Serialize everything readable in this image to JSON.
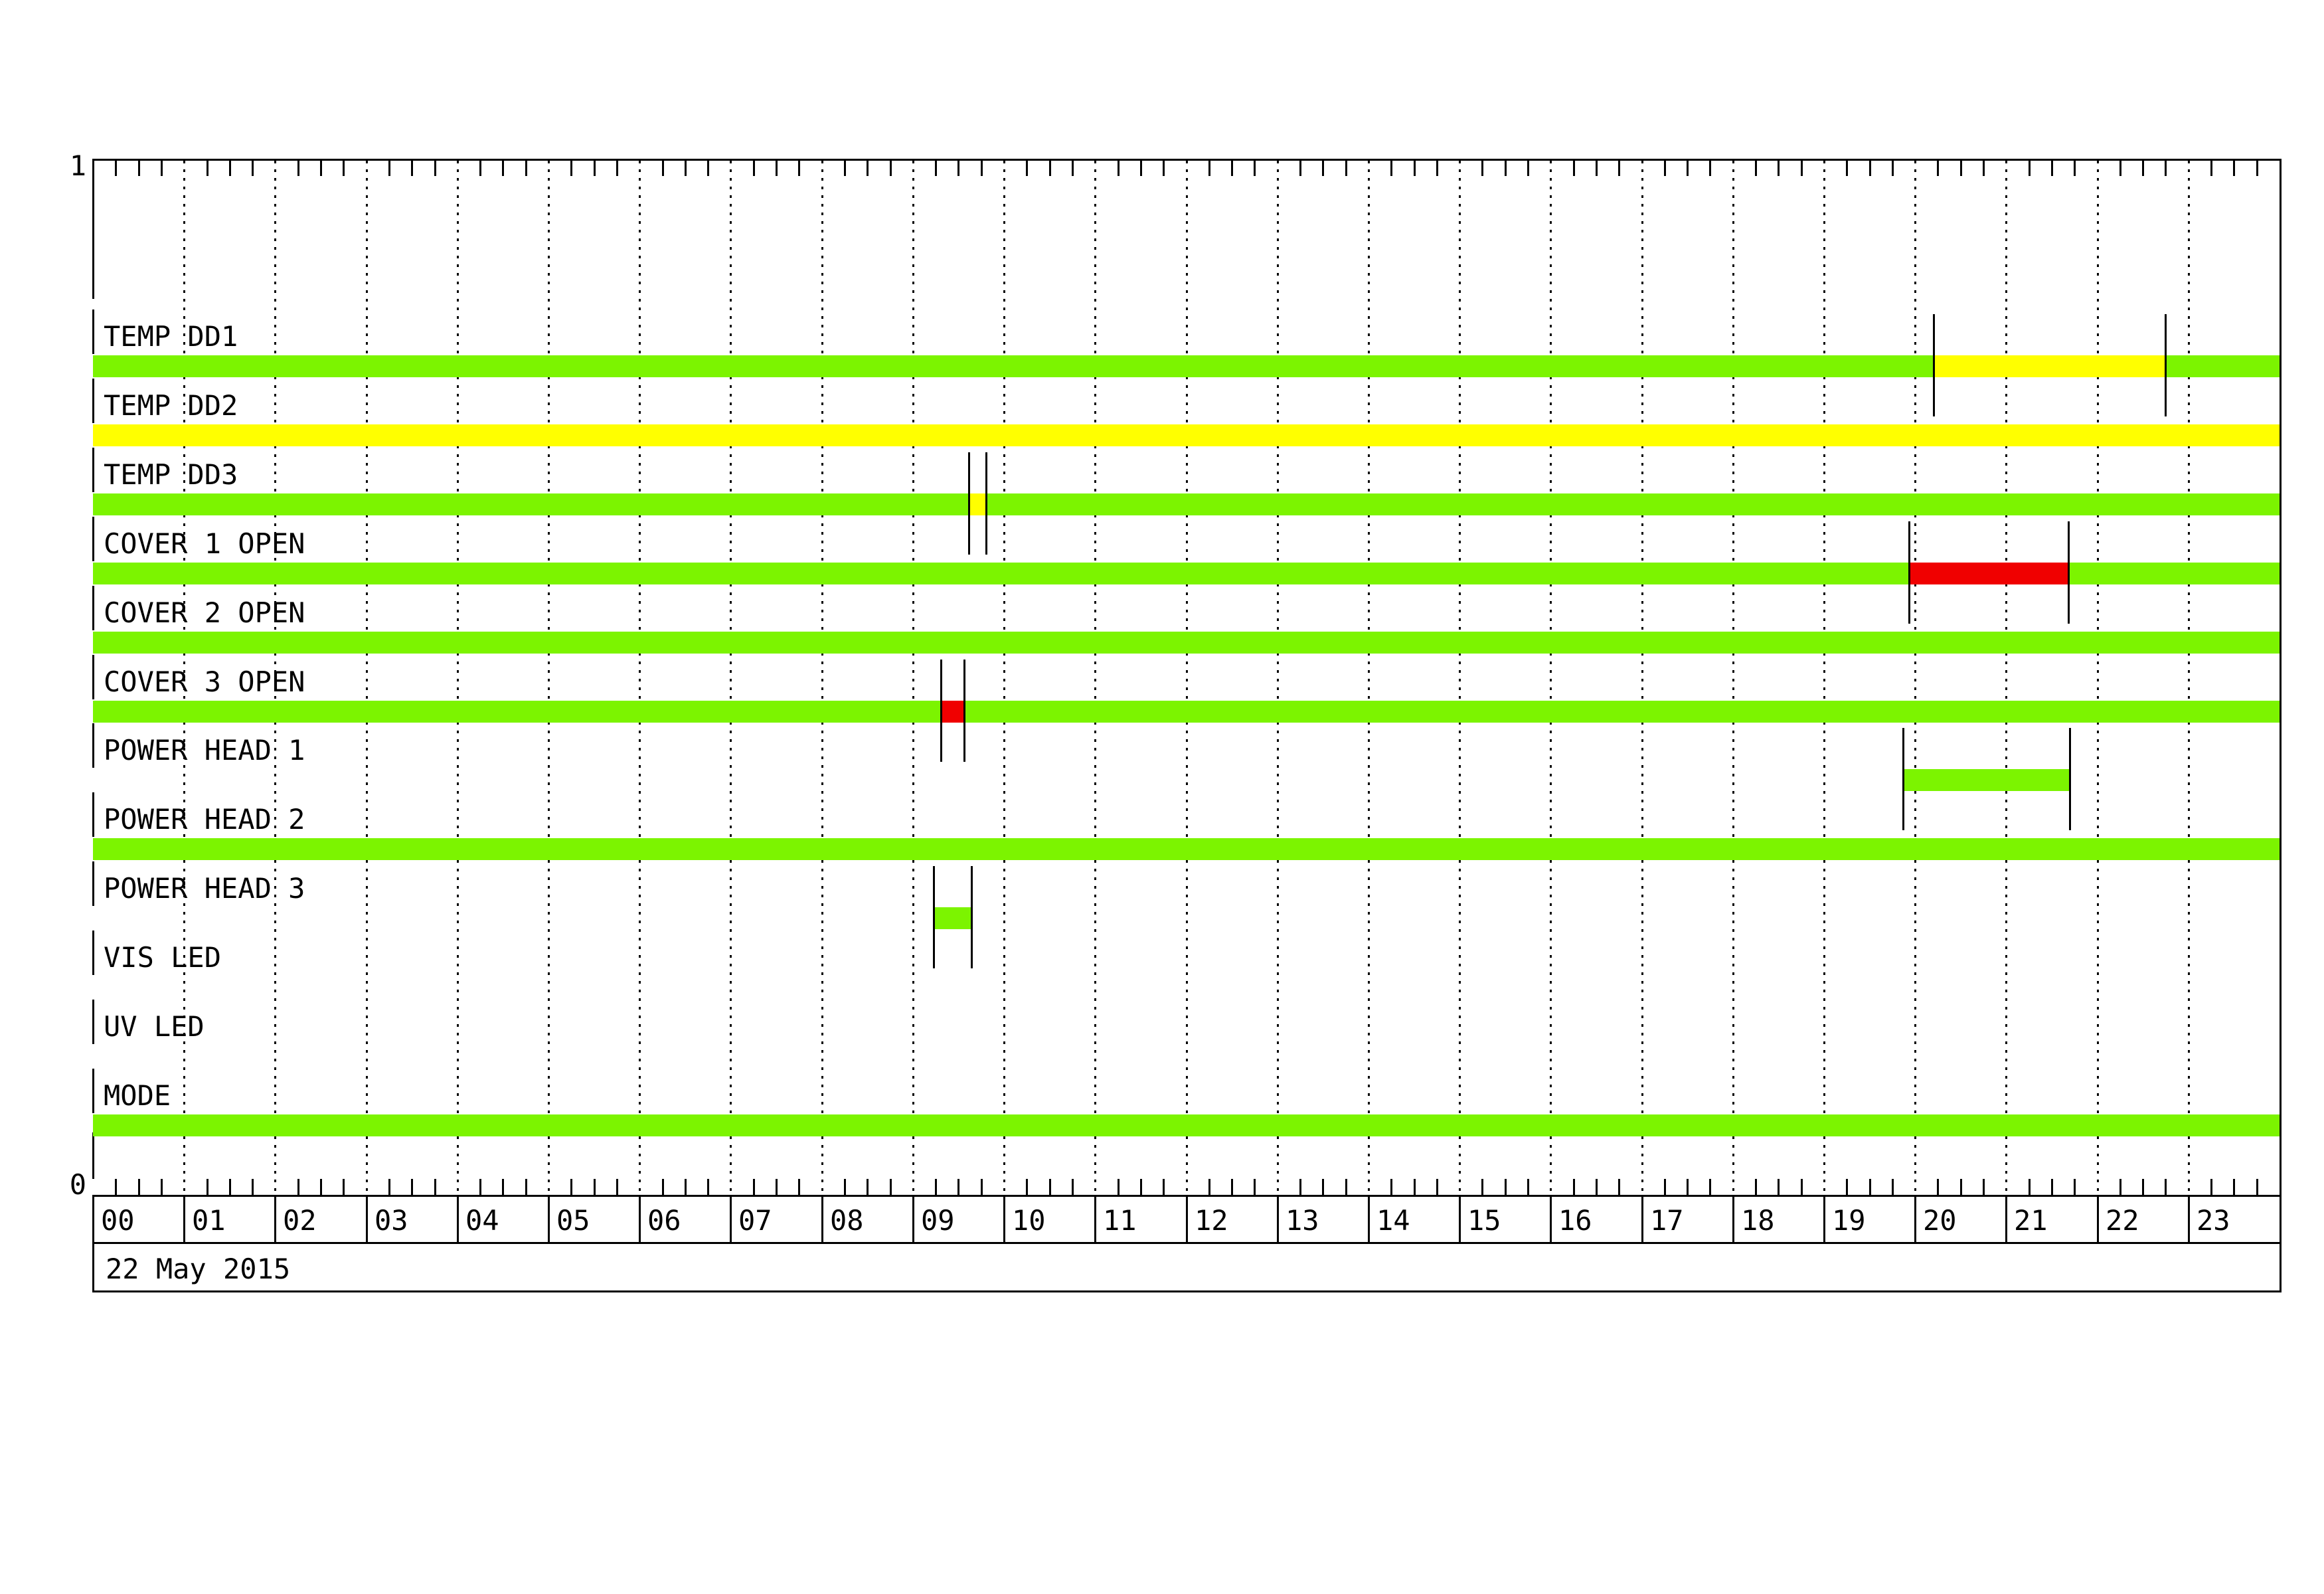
{
  "chart_data": {
    "type": "bar",
    "subtype": "status-timeline-gantt",
    "title": "",
    "date": "22 May 2015",
    "y_axis": {
      "top_label": "1",
      "bottom_label": "0",
      "ylim": [
        0,
        1
      ]
    },
    "x_axis": {
      "range_hours": [
        0,
        24
      ],
      "hour_labels": [
        "00",
        "01",
        "02",
        "03",
        "04",
        "05",
        "06",
        "07",
        "08",
        "09",
        "10",
        "11",
        "12",
        "13",
        "14",
        "15",
        "16",
        "17",
        "18",
        "19",
        "20",
        "21",
        "22",
        "23"
      ],
      "minor_tick_minutes": 15,
      "gridlines": "dotted vertical line at each hour"
    },
    "status_colors": {
      "ok": "#7CF400",
      "warn": "#FFFF00",
      "alarm": "#F00000"
    },
    "legend": "none",
    "rows": [
      {
        "label": "TEMP DD1",
        "segments": [
          {
            "start_hour": 0,
            "end_hour": 20.2,
            "status": "ok"
          },
          {
            "start_hour": 20.2,
            "end_hour": 22.75,
            "status": "warn"
          },
          {
            "start_hour": 22.75,
            "end_hour": 24,
            "status": "ok"
          }
        ],
        "event_markers_hours": [
          20.2,
          22.75
        ]
      },
      {
        "label": "TEMP DD2",
        "segments": [
          {
            "start_hour": 0,
            "end_hour": 24,
            "status": "warn"
          }
        ],
        "event_markers_hours": []
      },
      {
        "label": "TEMP DD3",
        "segments": [
          {
            "start_hour": 0,
            "end_hour": 9.61,
            "status": "ok"
          },
          {
            "start_hour": 9.61,
            "end_hour": 9.8,
            "status": "warn"
          },
          {
            "start_hour": 9.8,
            "end_hour": 24,
            "status": "ok"
          }
        ],
        "event_markers_hours": [
          9.61,
          9.8
        ]
      },
      {
        "label": "COVER 1 OPEN",
        "segments": [
          {
            "start_hour": 0,
            "end_hour": 19.93,
            "status": "ok"
          },
          {
            "start_hour": 19.93,
            "end_hour": 21.68,
            "status": "alarm"
          },
          {
            "start_hour": 21.68,
            "end_hour": 24,
            "status": "ok"
          }
        ],
        "event_markers_hours": [
          19.93,
          21.68
        ]
      },
      {
        "label": "COVER 2 OPEN",
        "segments": [
          {
            "start_hour": 0,
            "end_hour": 24,
            "status": "ok"
          }
        ],
        "event_markers_hours": []
      },
      {
        "label": "COVER 3 OPEN",
        "segments": [
          {
            "start_hour": 0,
            "end_hour": 9.31,
            "status": "ok"
          },
          {
            "start_hour": 9.31,
            "end_hour": 9.56,
            "status": "alarm"
          },
          {
            "start_hour": 9.56,
            "end_hour": 24,
            "status": "ok"
          }
        ],
        "event_markers_hours": [
          9.31,
          9.56
        ]
      },
      {
        "label": "POWER HEAD 1",
        "segments": [
          {
            "start_hour": 19.87,
            "end_hour": 21.7,
            "status": "ok"
          }
        ],
        "event_markers_hours": [
          19.87,
          21.7
        ]
      },
      {
        "label": "POWER HEAD 2",
        "segments": [
          {
            "start_hour": 0,
            "end_hour": 24,
            "status": "ok"
          }
        ],
        "event_markers_hours": []
      },
      {
        "label": "POWER HEAD 3",
        "segments": [
          {
            "start_hour": 9.23,
            "end_hour": 9.64,
            "status": "ok"
          }
        ],
        "event_markers_hours": [
          9.23,
          9.64
        ]
      },
      {
        "label": "VIS LED",
        "segments": [],
        "event_markers_hours": []
      },
      {
        "label": "UV LED",
        "segments": [],
        "event_markers_hours": []
      },
      {
        "label": "MODE",
        "segments": [
          {
            "start_hour": 0,
            "end_hour": 24,
            "status": "ok"
          }
        ],
        "event_markers_hours": []
      }
    ]
  }
}
